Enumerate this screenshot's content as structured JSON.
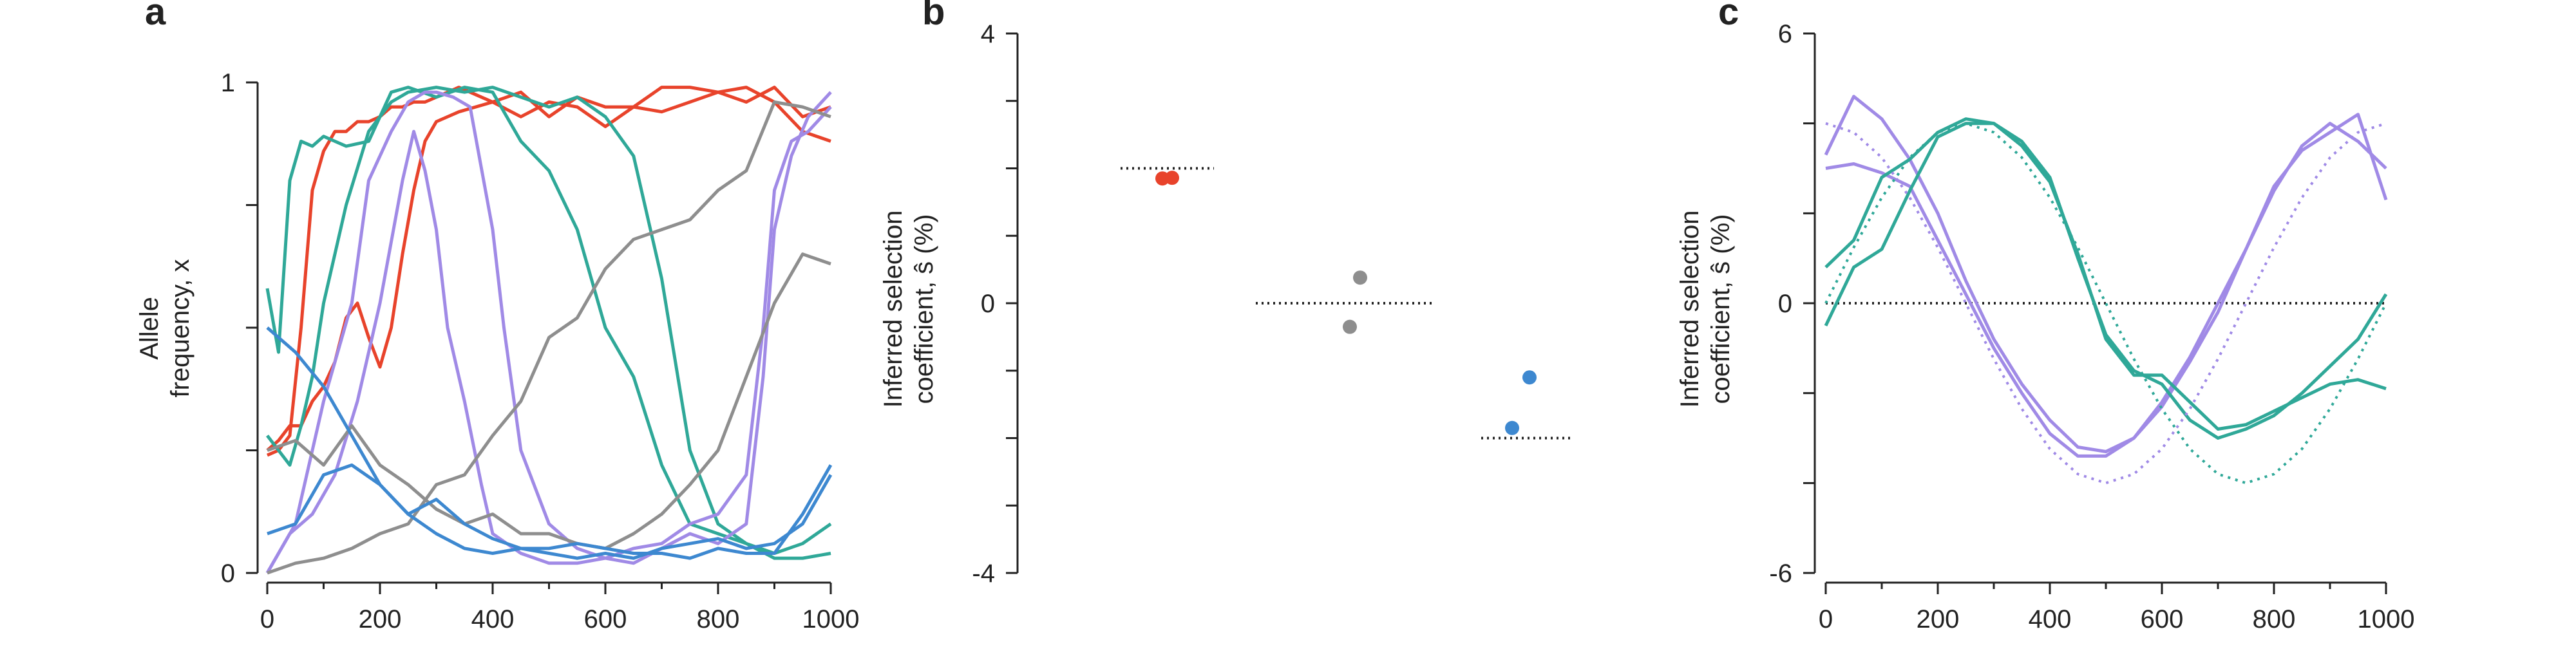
{
  "colors": {
    "red": "#e8432b",
    "teal": "#2fa898",
    "purple": "#a08ae6",
    "gray": "#8e8e8e",
    "blue": "#3d88d0",
    "axis": "#222222",
    "reference_line": "#222222"
  },
  "chart_data": [
    {
      "panel": "a",
      "type": "line",
      "ylabel_line1": "Allele",
      "ylabel_line2": "frequency, x",
      "xlabel": "",
      "xlim": [
        0,
        1000
      ],
      "ylim": [
        0,
        1
      ],
      "x_ticks": [
        "0",
        "200",
        "400",
        "600",
        "800",
        "1000"
      ],
      "y_ticks": [
        "0",
        "1"
      ],
      "grid": false,
      "legend": "none",
      "series": [
        {
          "color": "red",
          "x": [
            0,
            20,
            40,
            60,
            80,
            100,
            120,
            140,
            160,
            180,
            200,
            220,
            240,
            260,
            280,
            300,
            340,
            400,
            450,
            500,
            550,
            600,
            650,
            700,
            750,
            800,
            850,
            900,
            950,
            1000
          ],
          "values": [
            0.24,
            0.25,
            0.28,
            0.5,
            0.78,
            0.86,
            0.9,
            0.9,
            0.92,
            0.92,
            0.93,
            0.95,
            0.95,
            0.96,
            0.96,
            0.97,
            0.99,
            0.96,
            0.98,
            0.93,
            0.97,
            0.95,
            0.95,
            0.99,
            0.99,
            0.98,
            0.96,
            0.99,
            0.93,
            0.95
          ]
        },
        {
          "color": "red",
          "x": [
            0,
            20,
            40,
            60,
            80,
            100,
            120,
            140,
            160,
            180,
            200,
            220,
            240,
            260,
            280,
            300,
            340,
            400,
            450,
            500,
            550,
            600,
            650,
            700,
            750,
            800,
            850,
            900,
            950,
            1000
          ],
          "values": [
            0.25,
            0.27,
            0.3,
            0.3,
            0.35,
            0.38,
            0.43,
            0.52,
            0.55,
            0.48,
            0.42,
            0.5,
            0.65,
            0.78,
            0.88,
            0.92,
            0.94,
            0.96,
            0.93,
            0.96,
            0.95,
            0.91,
            0.95,
            0.94,
            0.96,
            0.98,
            0.99,
            0.96,
            0.9,
            0.88
          ]
        },
        {
          "color": "teal",
          "x": [
            0,
            20,
            40,
            60,
            80,
            100,
            140,
            180,
            220,
            250,
            300,
            350,
            400,
            450,
            500,
            550,
            600,
            650,
            700,
            750,
            800,
            850,
            900,
            950,
            1000
          ],
          "values": [
            0.58,
            0.45,
            0.8,
            0.88,
            0.87,
            0.89,
            0.87,
            0.88,
            0.98,
            0.99,
            0.97,
            0.99,
            0.98,
            0.88,
            0.82,
            0.7,
            0.5,
            0.4,
            0.22,
            0.1,
            0.08,
            0.06,
            0.04,
            0.06,
            0.1
          ]
        },
        {
          "color": "teal",
          "x": [
            0,
            20,
            40,
            60,
            80,
            100,
            140,
            180,
            220,
            250,
            300,
            350,
            400,
            450,
            500,
            550,
            600,
            650,
            700,
            750,
            800,
            850,
            900,
            950,
            1000
          ],
          "values": [
            0.28,
            0.25,
            0.22,
            0.3,
            0.4,
            0.55,
            0.75,
            0.9,
            0.96,
            0.98,
            0.99,
            0.98,
            0.99,
            0.97,
            0.95,
            0.97,
            0.93,
            0.85,
            0.6,
            0.25,
            0.1,
            0.06,
            0.03,
            0.03,
            0.04
          ]
        },
        {
          "color": "purple",
          "x": [
            0,
            50,
            100,
            150,
            180,
            220,
            250,
            280,
            300,
            330,
            360,
            400,
            420,
            450,
            500,
            550,
            600,
            650,
            700,
            750,
            800,
            850,
            880,
            900,
            930,
            960,
            1000
          ],
          "values": [
            0.0,
            0.1,
            0.35,
            0.55,
            0.8,
            0.9,
            0.96,
            0.98,
            0.98,
            0.97,
            0.95,
            0.7,
            0.5,
            0.25,
            0.1,
            0.05,
            0.03,
            0.02,
            0.05,
            0.08,
            0.06,
            0.1,
            0.4,
            0.7,
            0.85,
            0.93,
            0.98
          ]
        },
        {
          "color": "purple",
          "x": [
            0,
            40,
            80,
            120,
            160,
            200,
            240,
            260,
            280,
            300,
            320,
            350,
            380,
            400,
            450,
            500,
            550,
            600,
            650,
            700,
            750,
            800,
            850,
            880,
            900,
            930,
            960,
            1000
          ],
          "values": [
            0.0,
            0.08,
            0.12,
            0.2,
            0.35,
            0.55,
            0.8,
            0.9,
            0.82,
            0.7,
            0.5,
            0.35,
            0.18,
            0.08,
            0.04,
            0.02,
            0.02,
            0.03,
            0.05,
            0.06,
            0.1,
            0.12,
            0.2,
            0.5,
            0.78,
            0.88,
            0.9,
            0.95
          ]
        },
        {
          "color": "gray",
          "x": [
            0,
            50,
            100,
            150,
            200,
            250,
            300,
            350,
            400,
            450,
            500,
            550,
            600,
            650,
            700,
            750,
            800,
            850,
            900,
            950,
            1000
          ],
          "values": [
            0.0,
            0.02,
            0.03,
            0.05,
            0.08,
            0.1,
            0.18,
            0.2,
            0.28,
            0.35,
            0.48,
            0.52,
            0.62,
            0.68,
            0.7,
            0.72,
            0.78,
            0.82,
            0.96,
            0.95,
            0.93
          ]
        },
        {
          "color": "gray",
          "x": [
            0,
            50,
            100,
            150,
            200,
            250,
            300,
            350,
            400,
            450,
            500,
            550,
            600,
            650,
            700,
            750,
            800,
            850,
            900,
            950,
            1000
          ],
          "values": [
            0.25,
            0.27,
            0.22,
            0.3,
            0.22,
            0.18,
            0.13,
            0.1,
            0.12,
            0.08,
            0.08,
            0.06,
            0.05,
            0.08,
            0.12,
            0.18,
            0.25,
            0.4,
            0.55,
            0.65,
            0.63
          ]
        },
        {
          "color": "blue",
          "x": [
            0,
            50,
            100,
            150,
            200,
            250,
            300,
            350,
            400,
            450,
            500,
            550,
            600,
            650,
            700,
            750,
            800,
            850,
            900,
            950,
            1000
          ],
          "values": [
            0.5,
            0.45,
            0.38,
            0.28,
            0.18,
            0.12,
            0.08,
            0.05,
            0.04,
            0.05,
            0.04,
            0.03,
            0.04,
            0.03,
            0.05,
            0.06,
            0.07,
            0.05,
            0.06,
            0.1,
            0.2
          ]
        },
        {
          "color": "blue",
          "x": [
            0,
            50,
            100,
            150,
            200,
            250,
            300,
            350,
            400,
            450,
            500,
            550,
            600,
            650,
            700,
            750,
            800,
            850,
            900,
            950,
            1000
          ],
          "values": [
            0.08,
            0.1,
            0.2,
            0.22,
            0.18,
            0.12,
            0.15,
            0.1,
            0.07,
            0.05,
            0.05,
            0.06,
            0.05,
            0.04,
            0.04,
            0.03,
            0.05,
            0.04,
            0.04,
            0.12,
            0.22
          ]
        }
      ]
    },
    {
      "panel": "b",
      "type": "scatter",
      "ylabel_line1": "Inferred selection",
      "ylabel_line2": "coefficient, ŝ (%)",
      "xlabel": "",
      "ylim": [
        -4,
        4
      ],
      "y_ticks": [
        "4",
        "0",
        "-4"
      ],
      "grid": false,
      "legend": "none",
      "groups": [
        {
          "color": "red",
          "true_value": 2.0,
          "points": [
            1.85,
            1.86
          ]
        },
        {
          "color": "gray",
          "true_value": 0.0,
          "points": [
            0.38,
            -0.35
          ]
        },
        {
          "color": "blue",
          "true_value": -2.0,
          "points": [
            -1.1,
            -1.85
          ]
        }
      ]
    },
    {
      "panel": "c",
      "type": "line",
      "ylabel_line1": "Inferred selection",
      "ylabel_line2": "coefficient, ŝ (%)",
      "xlabel": "",
      "xlim": [
        0,
        1000
      ],
      "ylim": [
        -6,
        6
      ],
      "x_ticks": [
        "0",
        "200",
        "400",
        "600",
        "800",
        "1000"
      ],
      "y_ticks": [
        "6",
        "0",
        "-6"
      ],
      "grid": false,
      "legend": "none",
      "reference": {
        "purple_amplitude": 4.0,
        "purple_period": 1000,
        "teal_amplitude": 4.0,
        "teal_period": 1000,
        "teal_phase": 250
      },
      "series": [
        {
          "color": "purple",
          "style": "solid",
          "x": [
            0,
            50,
            100,
            150,
            200,
            250,
            300,
            350,
            400,
            450,
            500,
            550,
            600,
            650,
            700,
            750,
            800,
            850,
            900,
            950,
            1000
          ],
          "values": [
            3.3,
            4.6,
            4.1,
            3.2,
            2.0,
            0.5,
            -0.8,
            -1.8,
            -2.6,
            -3.2,
            -3.3,
            -3.0,
            -2.2,
            -1.2,
            0.0,
            1.2,
            2.5,
            3.5,
            4.0,
            3.6,
            3.0
          ]
        },
        {
          "color": "purple",
          "style": "solid",
          "x": [
            0,
            50,
            100,
            150,
            200,
            250,
            300,
            350,
            400,
            450,
            500,
            550,
            600,
            650,
            700,
            750,
            800,
            850,
            900,
            950,
            1000
          ],
          "values": [
            3.0,
            3.1,
            2.9,
            2.6,
            1.4,
            0.2,
            -1.0,
            -2.0,
            -2.9,
            -3.4,
            -3.4,
            -3.0,
            -2.3,
            -1.3,
            -0.2,
            1.2,
            2.6,
            3.4,
            3.8,
            4.2,
            2.3
          ]
        },
        {
          "color": "teal",
          "style": "solid",
          "x": [
            0,
            50,
            100,
            150,
            200,
            250,
            300,
            350,
            400,
            450,
            500,
            550,
            600,
            650,
            700,
            750,
            800,
            850,
            900,
            950,
            1000
          ],
          "values": [
            0.8,
            1.4,
            2.8,
            3.2,
            3.8,
            4.1,
            4.0,
            3.6,
            2.8,
            1.0,
            -0.7,
            -1.5,
            -1.8,
            -2.6,
            -3.0,
            -2.8,
            -2.5,
            -2.0,
            -1.4,
            -0.8,
            0.2
          ]
        },
        {
          "color": "teal",
          "style": "solid",
          "x": [
            0,
            50,
            100,
            150,
            200,
            250,
            300,
            350,
            400,
            450,
            500,
            550,
            600,
            650,
            700,
            750,
            800,
            850,
            900,
            950,
            1000
          ],
          "values": [
            -0.5,
            0.8,
            1.2,
            2.5,
            3.7,
            4.0,
            4.0,
            3.5,
            2.7,
            1.1,
            -0.8,
            -1.6,
            -1.6,
            -2.2,
            -2.8,
            -2.7,
            -2.4,
            -2.1,
            -1.8,
            -1.7,
            -1.9
          ]
        },
        {
          "color": "purple",
          "style": "dotted",
          "x": [
            0,
            50,
            100,
            150,
            200,
            250,
            300,
            350,
            400,
            450,
            500,
            550,
            600,
            650,
            700,
            750,
            800,
            850,
            900,
            950,
            1000
          ],
          "values": [
            4.0,
            3.8,
            3.24,
            2.35,
            1.24,
            0.0,
            -1.24,
            -2.35,
            -3.24,
            -3.8,
            -4.0,
            -3.8,
            -3.24,
            -2.35,
            -1.24,
            0.0,
            1.24,
            2.35,
            3.24,
            3.8,
            4.0
          ]
        },
        {
          "color": "teal",
          "style": "dotted",
          "x": [
            0,
            50,
            100,
            150,
            200,
            250,
            300,
            350,
            400,
            450,
            500,
            550,
            600,
            650,
            700,
            750,
            800,
            850,
            900,
            950,
            1000
          ],
          "values": [
            0.0,
            1.24,
            2.35,
            3.24,
            3.8,
            4.0,
            3.8,
            3.24,
            2.35,
            1.24,
            0.0,
            -1.24,
            -2.35,
            -3.24,
            -3.8,
            -4.0,
            -3.8,
            -3.24,
            -2.35,
            -1.24,
            0.0
          ]
        }
      ]
    }
  ]
}
